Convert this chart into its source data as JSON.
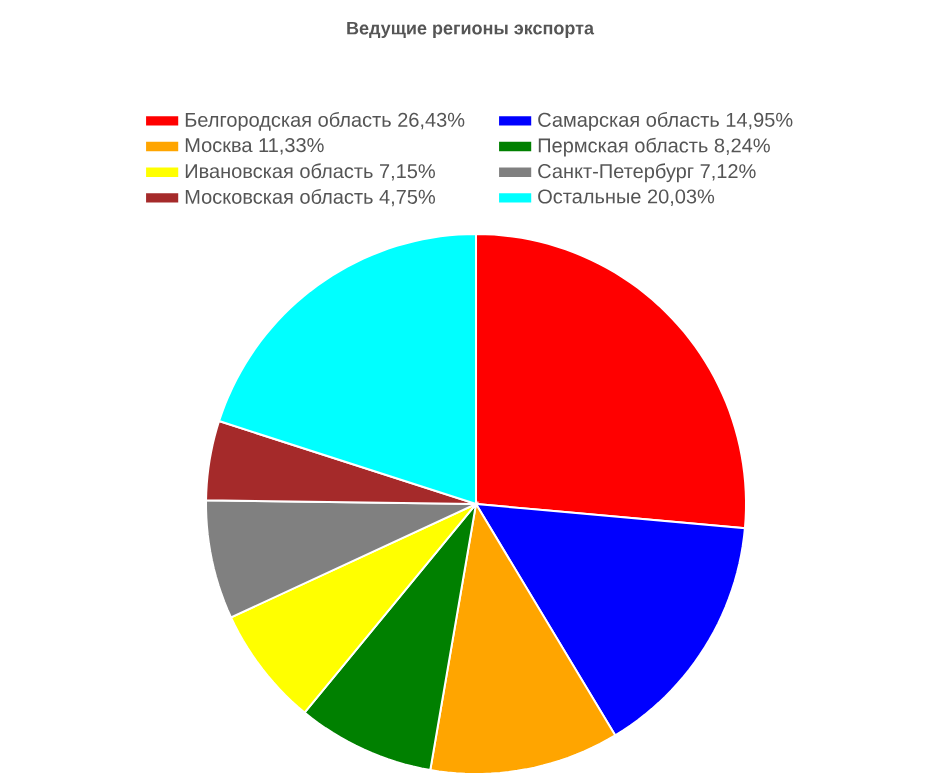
{
  "chart_data": {
    "type": "pie",
    "title": "Ведущие регионы экспорта",
    "categories": [
      "Белгородская область 26,43%",
      "Самарская область 14,95%",
      "Москва 11,33%",
      "Пермская область 8,24%",
      "Ивановская область 7,15%",
      "Санкт-Петербург 7,12%",
      "Московская область 4,75%",
      "Остальные 20,03%"
    ],
    "values": [
      26.43,
      14.95,
      11.33,
      8.24,
      7.15,
      7.12,
      4.75,
      20.03
    ],
    "colors": [
      "#ff0000",
      "#0000ff",
      "#ffa500",
      "#008000",
      "#ffff00",
      "#808080",
      "#a52a2a",
      "#00ffff"
    ],
    "legend": "top"
  }
}
